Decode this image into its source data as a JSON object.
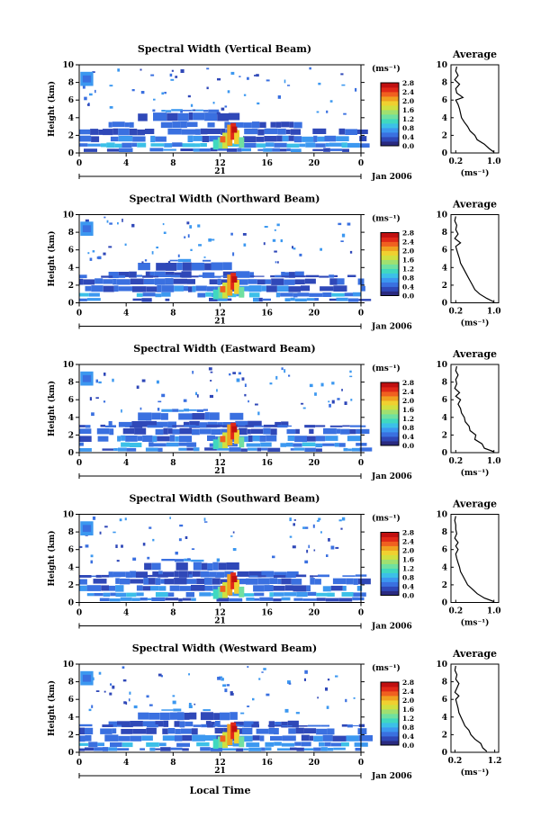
{
  "figure": {
    "shared": {
      "height_label": "Height (km)",
      "unit_label": "(ms⁻¹)",
      "avg_title": "Average",
      "avg_xlabel": "(ms⁻¹)",
      "date_label": "Jan 2006",
      "day_label": "21",
      "xlabel_bottom": "Local Time",
      "colormap": [
        "#2a2a80",
        "#2f48b8",
        "#3a70e0",
        "#3c98f0",
        "#3cc0e8",
        "#40d8c0",
        "#70e0a0",
        "#a0e070",
        "#d0e040",
        "#f0d030",
        "#f0a020",
        "#f06020",
        "#e02818",
        "#c01010"
      ]
    },
    "panels": [
      {
        "title": "Spectral Width (Vertical Beam)",
        "x_ticks": [
          "0",
          "4",
          "8",
          "12",
          "16",
          "20",
          "0"
        ],
        "y_ticks": [
          "0",
          "2",
          "4",
          "6",
          "8",
          "10"
        ],
        "cb_ticks": [
          "0.0",
          "0.4",
          "0.8",
          "1.2",
          "1.6",
          "2.0",
          "2.4",
          "2.8"
        ],
        "avg_x_ticks": [
          "0.2",
          "1.0"
        ],
        "avg_y_ticks": [
          "0",
          "2",
          "4",
          "6",
          "8",
          "10"
        ]
      },
      {
        "title": "Spectral Width (Northward Beam)",
        "x_ticks": [
          "0",
          "4",
          "8",
          "12",
          "16",
          "20",
          "0"
        ],
        "y_ticks": [
          "0",
          "2",
          "4",
          "6",
          "8",
          "10"
        ],
        "cb_ticks": [
          "0.0",
          "0.4",
          "0.8",
          "1.2",
          "1.6",
          "2.0",
          "2.4",
          "2.8"
        ],
        "avg_x_ticks": [
          "0.2",
          "1.0"
        ],
        "avg_y_ticks": [
          "0",
          "2",
          "4",
          "6",
          "8",
          "10"
        ]
      },
      {
        "title": "Spectral Width (Eastward Beam)",
        "x_ticks": [
          "0",
          "4",
          "8",
          "12",
          "16",
          "20",
          "0"
        ],
        "y_ticks": [
          "0",
          "2",
          "4",
          "6",
          "8",
          "10"
        ],
        "cb_ticks": [
          "0.0",
          "0.4",
          "0.8",
          "1.2",
          "1.6",
          "2.0",
          "2.4",
          "2.8"
        ],
        "avg_x_ticks": [
          "0.2",
          "1.0"
        ],
        "avg_y_ticks": [
          "0",
          "2",
          "4",
          "6",
          "8",
          "10"
        ]
      },
      {
        "title": "Spectral Width (Southward Beam)",
        "x_ticks": [
          "0",
          "4",
          "8",
          "12",
          "16",
          "20",
          "0"
        ],
        "y_ticks": [
          "0",
          "2",
          "4",
          "6",
          "8",
          "10"
        ],
        "cb_ticks": [
          "0.0",
          "0.4",
          "0.8",
          "1.2",
          "1.6",
          "2.0",
          "2.4",
          "2.8"
        ],
        "avg_x_ticks": [
          "0.2",
          "1.0"
        ],
        "avg_y_ticks": [
          "0",
          "2",
          "4",
          "6",
          "8",
          "10"
        ]
      },
      {
        "title": "Spectral Width (Westward Beam)",
        "x_ticks": [
          "0",
          "4",
          "8",
          "12",
          "16",
          "20",
          "0"
        ],
        "y_ticks": [
          "0",
          "2",
          "4",
          "6",
          "8",
          "10"
        ],
        "cb_ticks": [
          "0.0",
          "0.4",
          "0.8",
          "1.2",
          "1.6",
          "2.0",
          "2.4",
          "2.8"
        ],
        "avg_x_ticks": [
          "0.2",
          "1.2"
        ],
        "avg_y_ticks": [
          "0",
          "2",
          "4",
          "6",
          "8",
          "10"
        ]
      }
    ]
  },
  "chart_data": [
    {
      "type": "heatmap",
      "title": "Spectral Width (Vertical Beam)",
      "xlabel": "",
      "ylabel": "Height (km)",
      "xlim": [
        0,
        24
      ],
      "ylim": [
        0,
        10
      ],
      "colorbar_range": [
        0,
        2.8
      ],
      "average_profile": {
        "type": "line",
        "title": "Average",
        "xlabel": "(ms⁻¹)",
        "xlim": [
          0.1,
          1.1
        ],
        "ylim": [
          0,
          10
        ],
        "x": [
          1.0,
          0.9,
          0.8,
          0.65,
          0.6,
          0.5,
          0.45,
          0.38,
          0.32,
          0.3,
          0.28,
          0.25,
          0.2,
          0.35,
          0.22,
          0.2,
          0.28,
          0.18,
          0.25,
          0.2,
          0.22
        ],
        "y": [
          0.1,
          0.5,
          1.0,
          1.5,
          2.0,
          2.5,
          3.0,
          3.5,
          4.0,
          4.5,
          5.0,
          5.5,
          6.0,
          6.3,
          6.8,
          7.3,
          7.8,
          8.3,
          8.8,
          9.3,
          9.8
        ]
      }
    },
    {
      "type": "heatmap",
      "title": "Spectral Width (Northward Beam)",
      "xlabel": "",
      "ylabel": "Height (km)",
      "xlim": [
        0,
        24
      ],
      "ylim": [
        0,
        10
      ],
      "colorbar_range": [
        0,
        2.8
      ],
      "average_profile": {
        "type": "line",
        "title": "Average",
        "xlabel": "(ms⁻¹)",
        "xlim": [
          0.1,
          1.1
        ],
        "ylim": [
          0,
          10
        ],
        "x": [
          1.0,
          0.85,
          0.7,
          0.6,
          0.55,
          0.5,
          0.45,
          0.4,
          0.35,
          0.3,
          0.28,
          0.25,
          0.22,
          0.2,
          0.3,
          0.18,
          0.25,
          0.2,
          0.22,
          0.18,
          0.2
        ],
        "y": [
          0.1,
          0.5,
          1.0,
          1.5,
          2.0,
          2.5,
          3.0,
          3.5,
          4.0,
          4.5,
          5.0,
          5.5,
          6.0,
          6.4,
          6.8,
          7.3,
          7.8,
          8.3,
          8.8,
          9.3,
          9.8
        ]
      }
    },
    {
      "type": "heatmap",
      "title": "Spectral Width (Eastward Beam)",
      "xlabel": "",
      "ylabel": "Height (km)",
      "xlim": [
        0,
        24
      ],
      "ylim": [
        0,
        10
      ],
      "colorbar_range": [
        0,
        2.8
      ],
      "average_profile": {
        "type": "line",
        "title": "Average",
        "xlabel": "(ms⁻¹)",
        "xlim": [
          0.1,
          1.1
        ],
        "ylim": [
          0,
          10
        ],
        "x": [
          1.0,
          0.8,
          0.75,
          0.6,
          0.62,
          0.5,
          0.48,
          0.4,
          0.38,
          0.32,
          0.3,
          0.25,
          0.3,
          0.2,
          0.28,
          0.18,
          0.22,
          0.2,
          0.25,
          0.2,
          0.22
        ],
        "y": [
          0.1,
          0.5,
          1.0,
          1.5,
          2.0,
          2.5,
          3.0,
          3.5,
          4.0,
          4.5,
          5.0,
          5.5,
          6.0,
          6.4,
          6.8,
          7.3,
          7.8,
          8.3,
          8.8,
          9.3,
          9.8
        ]
      }
    },
    {
      "type": "heatmap",
      "title": "Spectral Width (Southward Beam)",
      "xlabel": "",
      "ylabel": "Height (km)",
      "xlim": [
        0,
        24
      ],
      "ylim": [
        0,
        10
      ],
      "colorbar_range": [
        0,
        2.8
      ],
      "average_profile": {
        "type": "line",
        "title": "Average",
        "xlabel": "(ms⁻¹)",
        "xlim": [
          0.1,
          1.1
        ],
        "ylim": [
          0,
          10
        ],
        "x": [
          1.0,
          0.8,
          0.65,
          0.55,
          0.45,
          0.4,
          0.35,
          0.3,
          0.28,
          0.25,
          0.22,
          0.2,
          0.25,
          0.2,
          0.25,
          0.18,
          0.22,
          0.2,
          0.2,
          0.18,
          0.2
        ],
        "y": [
          0.1,
          0.5,
          1.0,
          1.5,
          2.0,
          2.5,
          3.0,
          3.5,
          4.0,
          4.5,
          5.0,
          5.5,
          6.0,
          6.4,
          6.8,
          7.3,
          7.8,
          8.3,
          8.8,
          9.3,
          9.8
        ]
      }
    },
    {
      "type": "heatmap",
      "title": "Spectral Width (Westward Beam)",
      "xlabel": "Local Time",
      "ylabel": "Height (km)",
      "xlim": [
        0,
        24
      ],
      "ylim": [
        0,
        10
      ],
      "colorbar_range": [
        0,
        2.8
      ],
      "average_profile": {
        "type": "line",
        "title": "Average",
        "xlabel": "(ms⁻¹)",
        "xlim": [
          0.1,
          1.3
        ],
        "ylim": [
          0,
          10
        ],
        "x": [
          1.0,
          0.9,
          0.85,
          0.7,
          0.6,
          0.55,
          0.45,
          0.4,
          0.35,
          0.3,
          0.28,
          0.25,
          0.22,
          0.3,
          0.2,
          0.25,
          0.3,
          0.22,
          0.25,
          0.2,
          0.22
        ],
        "y": [
          0.1,
          0.5,
          1.0,
          1.5,
          2.0,
          2.5,
          3.0,
          3.5,
          4.0,
          4.5,
          5.0,
          5.5,
          6.0,
          6.4,
          6.8,
          7.3,
          7.8,
          8.3,
          8.8,
          9.3,
          9.8
        ]
      }
    }
  ]
}
